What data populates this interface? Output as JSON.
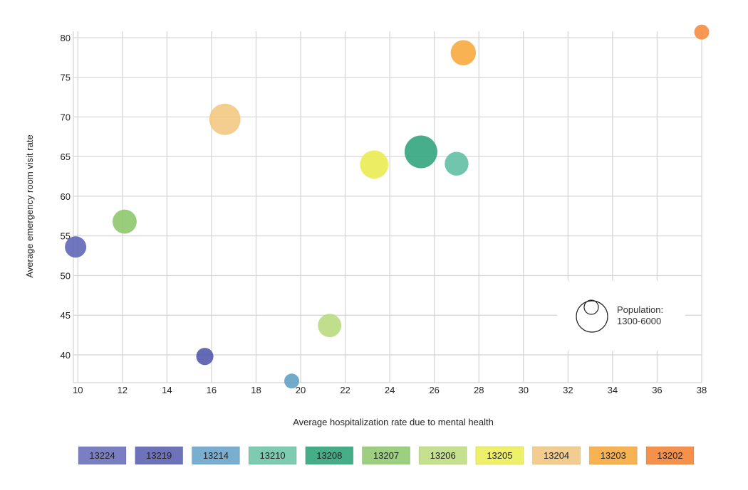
{
  "chart_data": {
    "type": "scatter",
    "xlabel": "Average hospitalization rate due to mental health",
    "ylabel": "Average emergency room visit rate",
    "xlim": [
      9.8,
      38
    ],
    "ylim": [
      36.5,
      80.8
    ],
    "xticks": [
      10,
      12,
      14,
      16,
      18,
      20,
      22,
      24,
      26,
      28,
      30,
      32,
      34,
      36,
      38
    ],
    "yticks": [
      40,
      45,
      50,
      55,
      60,
      65,
      70,
      75,
      80
    ],
    "grid": true,
    "size_legend": {
      "title": "Population:",
      "range": "1300-6000"
    },
    "points": [
      {
        "label": "13224",
        "x": 9.9,
        "y": 53.6,
        "size": 2600,
        "color": "#5b63b5"
      },
      {
        "label": "13219",
        "x": 15.7,
        "y": 39.8,
        "size": 1700,
        "color": "#4f56aa"
      },
      {
        "label": "13214",
        "x": 19.6,
        "y": 36.7,
        "size": 1300,
        "color": "#5f9ec4"
      },
      {
        "label": "13210",
        "x": 27.0,
        "y": 64.1,
        "size": 3200,
        "color": "#5cbea0"
      },
      {
        "label": "13208",
        "x": 25.4,
        "y": 65.6,
        "size": 6000,
        "color": "#2ca37a"
      },
      {
        "label": "13207",
        "x": 12.1,
        "y": 56.8,
        "size": 3300,
        "color": "#8bc66a"
      },
      {
        "label": "13206",
        "x": 21.3,
        "y": 43.7,
        "size": 3100,
        "color": "#b7d97b"
      },
      {
        "label": "13205",
        "x": 23.3,
        "y": 64.0,
        "size": 4500,
        "color": "#ebeb4d"
      },
      {
        "label": "13204",
        "x": 16.6,
        "y": 69.7,
        "size": 5500,
        "color": "#f2c77e"
      },
      {
        "label": "13203",
        "x": 27.3,
        "y": 78.1,
        "size": 3600,
        "color": "#f7a73a"
      },
      {
        "label": "13202",
        "x": 38.0,
        "y": 80.7,
        "size": 1300,
        "color": "#f5893a"
      }
    ],
    "legend": [
      {
        "label": "13224",
        "color": "#7a7fc2"
      },
      {
        "label": "13219",
        "color": "#6e72b8"
      },
      {
        "label": "13214",
        "color": "#79aed0"
      },
      {
        "label": "13210",
        "color": "#7fcbb1"
      },
      {
        "label": "13208",
        "color": "#45ad88"
      },
      {
        "label": "13207",
        "color": "#9dcf80"
      },
      {
        "label": "13206",
        "color": "#c5e08f"
      },
      {
        "label": "13205",
        "color": "#eef06a"
      },
      {
        "label": "13204",
        "color": "#f3cc90"
      },
      {
        "label": "13203",
        "color": "#f7b351"
      },
      {
        "label": "13202",
        "color": "#f5914a"
      }
    ]
  }
}
